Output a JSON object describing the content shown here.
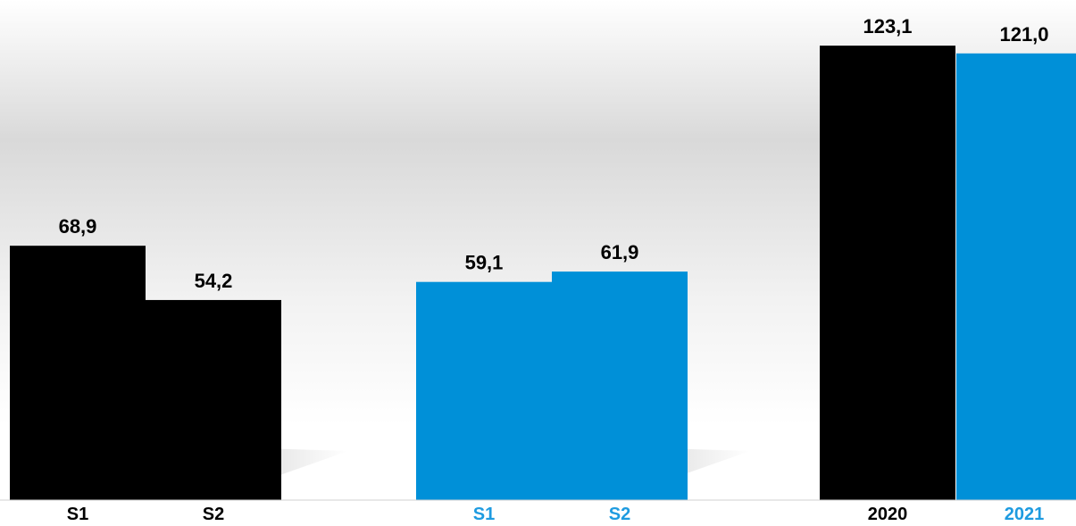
{
  "chart_data": {
    "type": "bar",
    "title": "",
    "xlabel": "",
    "ylabel": "",
    "ylim": [
      0,
      127
    ],
    "grid": false,
    "legend": "none",
    "colors": {
      "dark": "#000000",
      "blue": "#0090d8",
      "background_top": "#ffffff",
      "background_mid": "#d9d9d9",
      "axis_line": "#d0d0d0",
      "text_dark": "#000000",
      "text_blue": "#1e9be0"
    },
    "bars": [
      {
        "category": "S1",
        "value": 68.9,
        "label": "68,9",
        "color": "dark"
      },
      {
        "category": "S2",
        "value": 54.2,
        "label": "54,2",
        "color": "dark"
      },
      {
        "category": "S1",
        "value": 59.1,
        "label": "59,1",
        "color": "blue"
      },
      {
        "category": "S2",
        "value": 61.9,
        "label": "61,9",
        "color": "blue"
      },
      {
        "category": "2020",
        "value": 123.1,
        "label": "123,1",
        "color": "dark"
      },
      {
        "category": "2021",
        "value": 121.0,
        "label": "121,0",
        "color": "blue"
      }
    ]
  }
}
